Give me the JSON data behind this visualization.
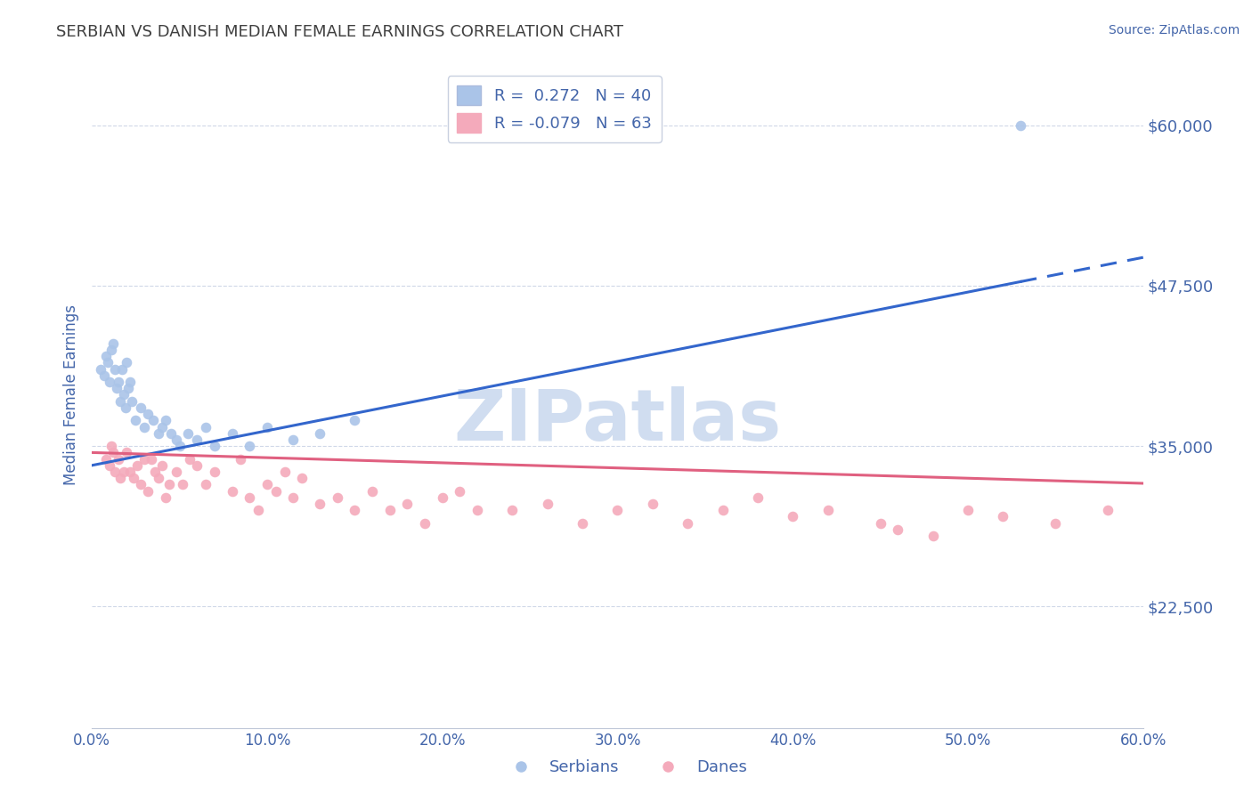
{
  "title": "SERBIAN VS DANISH MEDIAN FEMALE EARNINGS CORRELATION CHART",
  "source_text": "Source: ZipAtlas.com",
  "ylabel": "Median Female Earnings",
  "watermark": "ZIPatlas",
  "xlim": [
    0.0,
    0.6
  ],
  "ylim": [
    13000,
    65000
  ],
  "yticks": [
    22500,
    35000,
    47500,
    60000
  ],
  "ytick_labels": [
    "$22,500",
    "$35,000",
    "$47,500",
    "$60,000"
  ],
  "xticks": [
    0.0,
    0.1,
    0.2,
    0.3,
    0.4,
    0.5,
    0.6
  ],
  "xtick_labels": [
    "0.0%",
    "10.0%",
    "20.0%",
    "30.0%",
    "40.0%",
    "50.0%",
    "60.0%"
  ],
  "serbian_color": "#aac4e8",
  "dane_color": "#f4aabb",
  "serbian_line_color": "#3366cc",
  "dane_line_color": "#e06080",
  "legend_serbian_label": "R =  0.272   N = 40",
  "legend_dane_label": "R = -0.079   N = 63",
  "legend_serbian_short": "Serbians",
  "legend_dane_short": "Danes",
  "serbian_line_start_x": 0.0,
  "serbian_line_solid_end_x": 0.53,
  "serbian_line_end_x": 0.6,
  "serbian_line_y0": 33500,
  "serbian_line_slope": 27000,
  "dane_line_y0": 34500,
  "dane_line_slope": -4000,
  "serbian_scatter_x": [
    0.005,
    0.007,
    0.008,
    0.009,
    0.01,
    0.011,
    0.012,
    0.013,
    0.014,
    0.015,
    0.016,
    0.017,
    0.018,
    0.019,
    0.02,
    0.021,
    0.022,
    0.023,
    0.025,
    0.028,
    0.03,
    0.032,
    0.035,
    0.038,
    0.04,
    0.042,
    0.045,
    0.048,
    0.05,
    0.055,
    0.06,
    0.065,
    0.07,
    0.08,
    0.09,
    0.1,
    0.115,
    0.13,
    0.15,
    0.53
  ],
  "serbian_scatter_y": [
    41000,
    40500,
    42000,
    41500,
    40000,
    42500,
    43000,
    41000,
    39500,
    40000,
    38500,
    41000,
    39000,
    38000,
    41500,
    39500,
    40000,
    38500,
    37000,
    38000,
    36500,
    37500,
    37000,
    36000,
    36500,
    37000,
    36000,
    35500,
    35000,
    36000,
    35500,
    36500,
    35000,
    36000,
    35000,
    36500,
    35500,
    36000,
    37000,
    60000
  ],
  "dane_scatter_x": [
    0.008,
    0.01,
    0.011,
    0.012,
    0.013,
    0.015,
    0.016,
    0.018,
    0.02,
    0.022,
    0.024,
    0.026,
    0.028,
    0.03,
    0.032,
    0.034,
    0.036,
    0.038,
    0.04,
    0.042,
    0.044,
    0.048,
    0.052,
    0.056,
    0.06,
    0.065,
    0.07,
    0.08,
    0.085,
    0.09,
    0.095,
    0.1,
    0.105,
    0.11,
    0.115,
    0.12,
    0.13,
    0.14,
    0.15,
    0.16,
    0.17,
    0.18,
    0.19,
    0.2,
    0.21,
    0.22,
    0.24,
    0.26,
    0.28,
    0.3,
    0.32,
    0.34,
    0.36,
    0.38,
    0.4,
    0.42,
    0.45,
    0.46,
    0.48,
    0.5,
    0.52,
    0.55,
    0.58
  ],
  "dane_scatter_y": [
    34000,
    33500,
    35000,
    34500,
    33000,
    34000,
    32500,
    33000,
    34500,
    33000,
    32500,
    33500,
    32000,
    34000,
    31500,
    34000,
    33000,
    32500,
    33500,
    31000,
    32000,
    33000,
    32000,
    34000,
    33500,
    32000,
    33000,
    31500,
    34000,
    31000,
    30000,
    32000,
    31500,
    33000,
    31000,
    32500,
    30500,
    31000,
    30000,
    31500,
    30000,
    30500,
    29000,
    31000,
    31500,
    30000,
    30000,
    30500,
    29000,
    30000,
    30500,
    29000,
    30000,
    31000,
    29500,
    30000,
    29000,
    28500,
    28000,
    30000,
    29500,
    29000,
    30000
  ],
  "title_color": "#404040",
  "tick_color": "#4466aa",
  "grid_color": "#d0d8e8",
  "watermark_color": "#d0ddf0",
  "background_color": "#ffffff"
}
